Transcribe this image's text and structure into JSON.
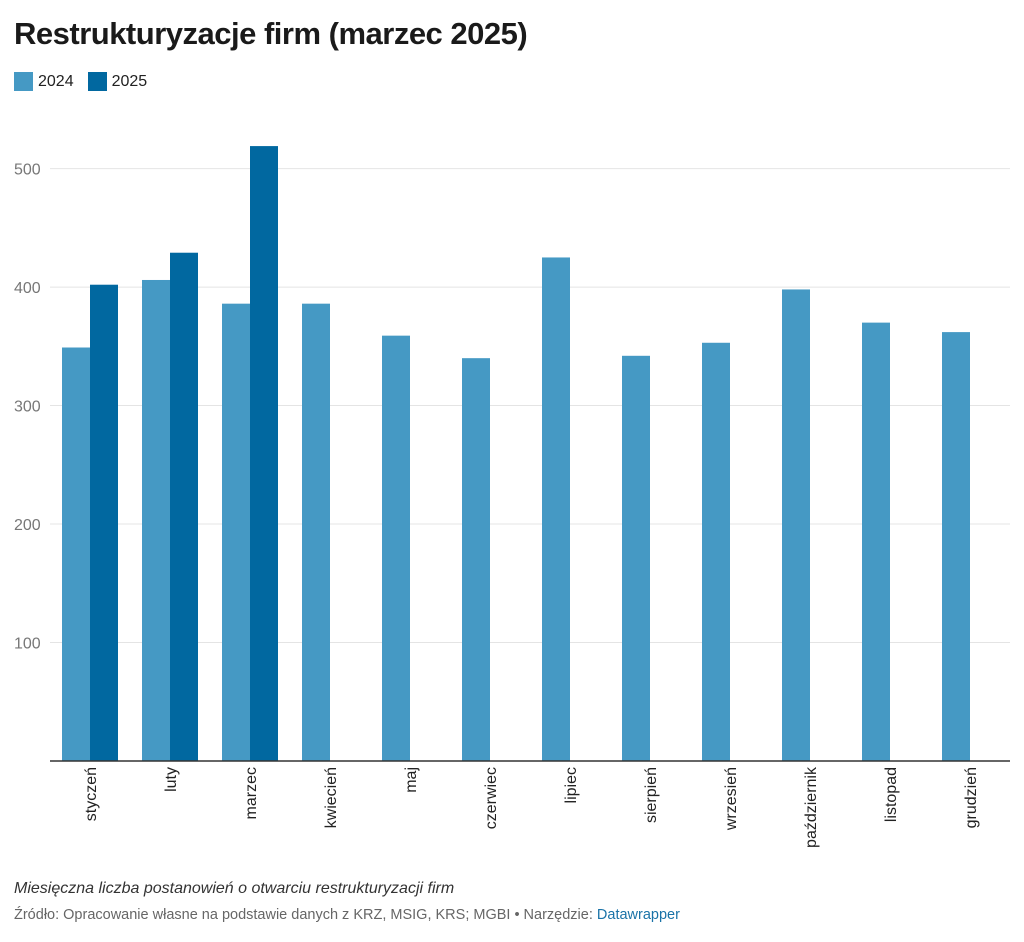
{
  "chart_data": {
    "type": "bar",
    "title": "Restrukturyzacje firm (marzec 2025)",
    "categories": [
      "styczeń",
      "luty",
      "marzec",
      "kwiecień",
      "maj",
      "czerwiec",
      "lipiec",
      "sierpień",
      "wrzesień",
      "październik",
      "listopad",
      "grudzień"
    ],
    "series": [
      {
        "name": "2024",
        "color": "#4599c4",
        "values": [
          349,
          406,
          386,
          386,
          359,
          340,
          425,
          342,
          353,
          398,
          370,
          362
        ]
      },
      {
        "name": "2025",
        "color": "#0168a0",
        "values": [
          402,
          429,
          519,
          null,
          null,
          null,
          null,
          null,
          null,
          null,
          null,
          null
        ]
      }
    ],
    "ylim": [
      0,
      560
    ],
    "yticks": [
      100,
      200,
      300,
      400,
      500
    ],
    "grid": true,
    "legend": "top-left",
    "xlabel": "",
    "ylabel": ""
  },
  "footer": {
    "note": "Miesięczna liczba postanowień o otwarciu restrukturyzacji firm",
    "source_text": "Źródło: Opracowanie własne na podstawie danych z KRZ, MSIG, KRS; MGBI • Narzędzie: ",
    "tool_link": "Datawrapper"
  }
}
